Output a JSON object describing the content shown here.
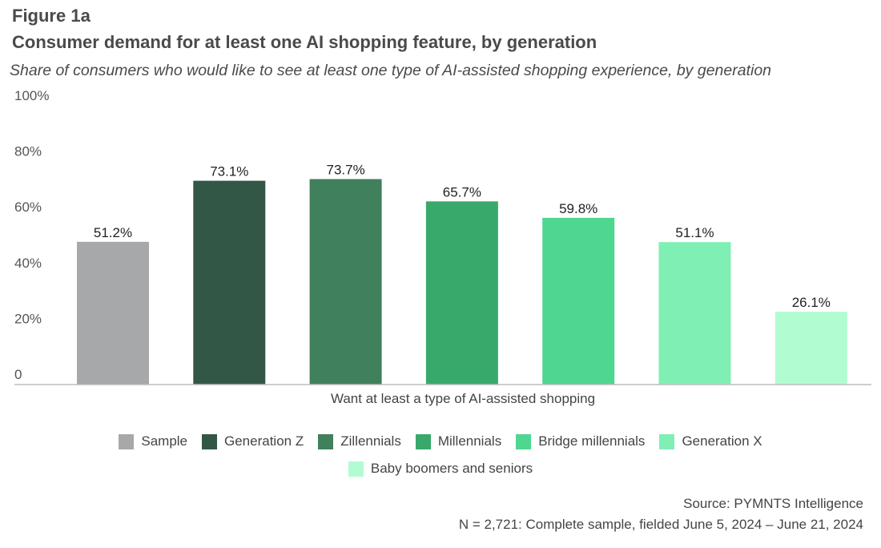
{
  "header": {
    "figure_label": "Figure 1a",
    "title": "Consumer demand for at least one AI shopping feature, by generation",
    "subtitle": "Share of consumers who would like to see at least one type of AI-assisted shopping experience, by generation"
  },
  "chart_data": {
    "type": "bar",
    "title": "Consumer demand for at least one AI shopping feature, by generation",
    "xlabel": "Want at least a type of AI-assisted shopping",
    "ylabel": "",
    "ylim": [
      0,
      100
    ],
    "yticks": [
      0,
      20,
      40,
      60,
      80,
      100
    ],
    "ytick_labels": [
      "0",
      "20%",
      "40%",
      "60%",
      "80%",
      "100%"
    ],
    "categories": [
      "Want at least a type of AI-assisted shopping"
    ],
    "grid": false,
    "legend_position": "bottom-center",
    "series": [
      {
        "name": "Sample",
        "values": [
          51.2
        ],
        "label": "51.2%",
        "color": "#a7a8aa"
      },
      {
        "name": "Generation Z",
        "values": [
          73.1
        ],
        "label": "73.1%",
        "color": "#335746"
      },
      {
        "name": "Zillennials",
        "values": [
          73.7
        ],
        "label": "73.7%",
        "color": "#40805c"
      },
      {
        "name": "Millennials",
        "values": [
          65.7
        ],
        "label": "65.7%",
        "color": "#38a96b"
      },
      {
        "name": "Bridge millennials",
        "values": [
          59.8
        ],
        "label": "59.8%",
        "color": "#4fd690"
      },
      {
        "name": "Generation X",
        "values": [
          51.1
        ],
        "label": "51.1%",
        "color": "#80efb3"
      },
      {
        "name": "Baby boomers and seniors",
        "values": [
          26.1
        ],
        "label": "26.1%",
        "color": "#b2fcd2"
      }
    ]
  },
  "footer": {
    "source": "Source: PYMNTS Intelligence",
    "note": "N = 2,721: Complete sample, fielded June 5, 2024 – June 21, 2024"
  }
}
